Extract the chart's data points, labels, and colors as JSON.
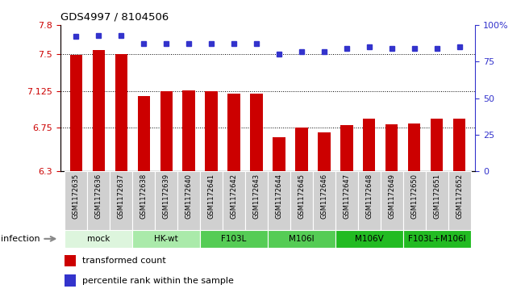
{
  "title": "GDS4997 / 8104506",
  "samples": [
    "GSM1172635",
    "GSM1172636",
    "GSM1172637",
    "GSM1172638",
    "GSM1172639",
    "GSM1172640",
    "GSM1172641",
    "GSM1172642",
    "GSM1172643",
    "GSM1172644",
    "GSM1172645",
    "GSM1172646",
    "GSM1172647",
    "GSM1172648",
    "GSM1172649",
    "GSM1172650",
    "GSM1172651",
    "GSM1172652"
  ],
  "bar_values": [
    7.49,
    7.54,
    7.5,
    7.07,
    7.125,
    7.13,
    7.125,
    7.1,
    7.1,
    6.65,
    6.75,
    6.7,
    6.77,
    6.84,
    6.78,
    6.79,
    6.84,
    6.84
  ],
  "percentile_values": [
    92,
    93,
    93,
    87,
    87,
    87,
    87,
    87,
    87,
    80,
    82,
    82,
    84,
    85,
    84,
    84,
    84,
    85
  ],
  "bar_color": "#cc0000",
  "dot_color": "#3333cc",
  "ylim_left": [
    6.3,
    7.8
  ],
  "ylim_right": [
    0,
    100
  ],
  "yticks_left": [
    6.3,
    6.75,
    7.125,
    7.5,
    7.8
  ],
  "ytick_labels_left": [
    "6.3",
    "6.75",
    "7.125",
    "7.5",
    "7.8"
  ],
  "yticks_right": [
    0,
    25,
    50,
    75,
    100
  ],
  "ytick_labels_right": [
    "0",
    "25",
    "50",
    "75",
    "100%"
  ],
  "hlines": [
    7.5,
    7.125,
    6.75
  ],
  "groups": [
    {
      "label": "mock",
      "start": 0,
      "end": 3,
      "color": "#ddf5dd"
    },
    {
      "label": "HK-wt",
      "start": 3,
      "end": 6,
      "color": "#aaeaaa"
    },
    {
      "label": "F103L",
      "start": 6,
      "end": 9,
      "color": "#55cc55"
    },
    {
      "label": "M106I",
      "start": 9,
      "end": 12,
      "color": "#55cc55"
    },
    {
      "label": "M106V",
      "start": 12,
      "end": 15,
      "color": "#22bb22"
    },
    {
      "label": "F103L+M106I",
      "start": 15,
      "end": 18,
      "color": "#22bb22"
    }
  ],
  "infection_label": "infection",
  "legend_bar_label": "transformed count",
  "legend_dot_label": "percentile rank within the sample",
  "sample_bg": "#d0d0d0",
  "plot_bg": "#ffffff",
  "fig_bg": "#ffffff"
}
